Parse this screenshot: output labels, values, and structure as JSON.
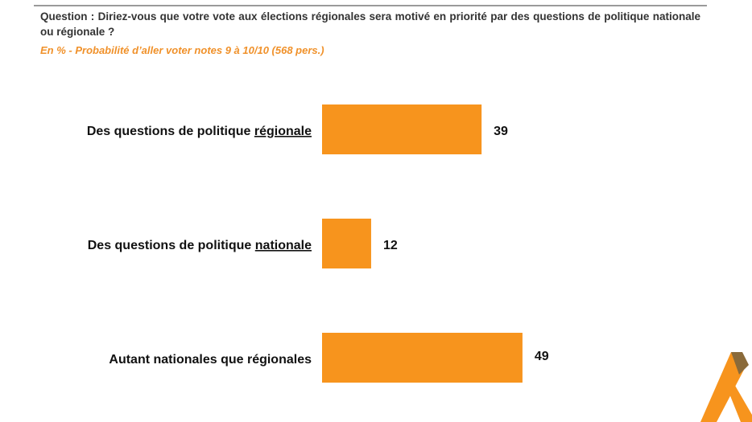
{
  "header": {
    "question": "Question : Diriez-vous que votre vote aux élections régionales sera motivé en priorité par des questions de politique nationale ou régionale ?",
    "subtitle": "En % - Probabilité d’aller voter notes 9 à 10/10 (568 pers.)"
  },
  "colors": {
    "bar": "#f7941d",
    "subtitle": "#f0912a",
    "logo_dark": "#8a6a3a",
    "logo_light": "#f7941d"
  },
  "chart_data": {
    "type": "bar",
    "orientation": "horizontal",
    "categories": [
      {
        "prefix": "Des questions de politique ",
        "emph": "régionale"
      },
      {
        "prefix": "Des questions de politique ",
        "emph": "nationale"
      },
      {
        "prefix": "Autant nationales que régionales",
        "emph": ""
      }
    ],
    "values": [
      39,
      12,
      49
    ],
    "unit": "%",
    "xlim": [
      0,
      100
    ],
    "grid": false,
    "legend": "none"
  }
}
